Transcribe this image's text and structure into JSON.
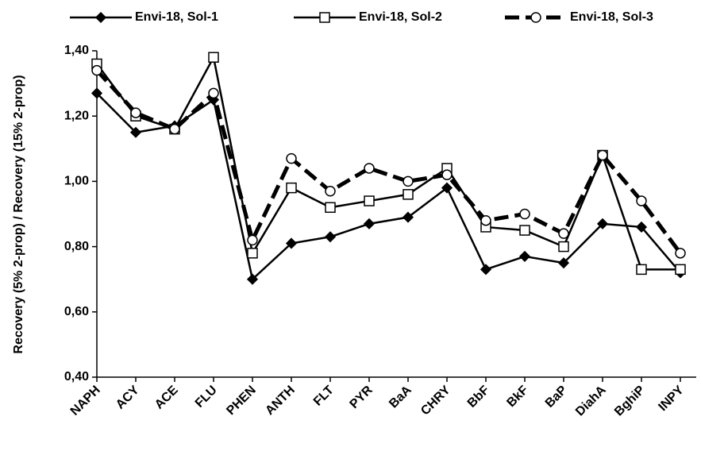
{
  "chart_data": {
    "type": "line",
    "y_label": "Recovery  (5% 2-prop) / Recovery  (15% 2-prop)",
    "categories": [
      "NAPH",
      "ACY",
      "ACE",
      "FLU",
      "PHEN",
      "ANTH",
      "FLT",
      "PYR",
      "BaA",
      "CHRY",
      "BbF",
      "BkF",
      "BaP",
      "DiahA",
      "BghiP",
      "INPY"
    ],
    "series": [
      {
        "name": "Envi-18, Sol-1",
        "color": "#000000",
        "marker": "diamond",
        "dash": false,
        "values": [
          1.27,
          1.15,
          1.17,
          1.25,
          0.7,
          0.81,
          0.83,
          0.87,
          0.89,
          0.98,
          0.73,
          0.77,
          0.75,
          0.87,
          0.86,
          0.72
        ]
      },
      {
        "name": "Envi-18, Sol-2",
        "color": "#000000",
        "marker": "square",
        "dash": false,
        "values": [
          1.36,
          1.2,
          1.16,
          1.38,
          0.78,
          0.98,
          0.92,
          0.94,
          0.96,
          1.04,
          0.86,
          0.85,
          0.8,
          1.08,
          0.73,
          0.73
        ]
      },
      {
        "name": "Envi-18, Sol-3",
        "color": "#000000",
        "marker": "circle",
        "dash": true,
        "values": [
          1.34,
          1.21,
          1.16,
          1.27,
          0.82,
          1.07,
          0.97,
          1.04,
          1.0,
          1.02,
          0.88,
          0.9,
          0.84,
          1.08,
          0.94,
          0.78
        ]
      }
    ],
    "ylim": [
      0.4,
      1.4
    ],
    "yticks": [
      {
        "value": 0.4,
        "label": "0,40"
      },
      {
        "value": 0.6,
        "label": "0,60"
      },
      {
        "value": 0.8,
        "label": "0,80"
      },
      {
        "value": 1.0,
        "label": "1,00"
      },
      {
        "value": 1.2,
        "label": "1,20"
      },
      {
        "value": 1.4,
        "label": "1,40"
      }
    ],
    "grid": false
  }
}
